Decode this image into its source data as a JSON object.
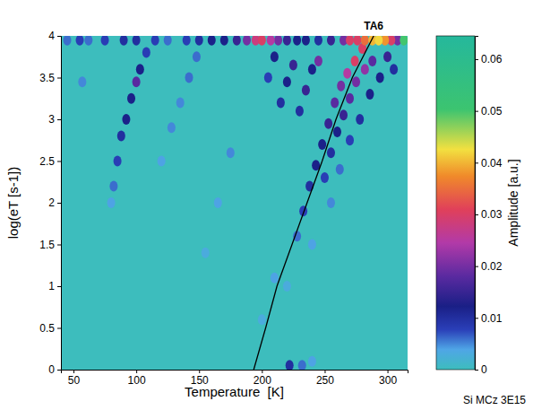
{
  "chart_data": {
    "type": "heatmap",
    "xlabel": "Temperature  [K]",
    "ylabel": "log(eT [s-1])",
    "caption": "Si MCz 3E15",
    "xlim": [
      40,
      316
    ],
    "xticks": [
      50,
      100,
      150,
      200,
      250,
      300
    ],
    "ylim": [
      0,
      4
    ],
    "yticks": [
      0,
      0.5,
      1,
      1.5,
      2,
      2.5,
      3,
      3.5,
      4
    ],
    "cells": {
      "x": [
        45,
        55,
        62,
        75,
        90,
        100,
        115,
        125,
        140,
        150,
        160,
        170,
        180,
        188,
        195,
        200,
        207,
        213,
        220,
        228,
        235,
        245,
        255,
        265,
        270,
        276,
        282,
        288,
        293,
        298,
        303,
        308,
        313,
        80,
        82,
        85,
        88,
        92,
        96,
        100,
        103,
        108,
        57,
        120,
        128,
        135,
        142,
        148,
        155,
        165,
        175,
        215,
        220,
        225,
        230,
        235,
        240,
        205,
        210,
        245,
        228,
        233,
        238,
        243,
        248,
        253,
        258,
        263,
        268,
        274,
        280,
        250,
        255,
        260,
        265,
        270,
        275,
        282,
        288,
        262,
        270,
        278,
        286,
        294,
        300,
        305,
        200,
        210,
        220,
        240,
        255,
        222,
        232,
        240
      ],
      "y": [
        3.95,
        3.95,
        3.95,
        3.95,
        3.95,
        3.95,
        3.95,
        3.95,
        3.95,
        3.95,
        3.95,
        3.95,
        3.95,
        3.95,
        3.95,
        3.95,
        3.95,
        3.95,
        3.95,
        3.95,
        3.95,
        3.95,
        3.95,
        3.95,
        3.95,
        3.95,
        3.95,
        3.95,
        3.95,
        3.95,
        3.95,
        3.95,
        3.95,
        2.0,
        2.2,
        2.5,
        2.8,
        3.0,
        3.25,
        3.45,
        3.6,
        3.8,
        3.45,
        2.5,
        2.9,
        3.2,
        3.5,
        3.75,
        1.4,
        2.0,
        2.6,
        3.2,
        3.45,
        3.65,
        3.1,
        3.35,
        3.6,
        3.5,
        3.75,
        3.7,
        1.6,
        1.9,
        2.2,
        2.45,
        2.7,
        2.95,
        3.2,
        3.4,
        3.55,
        3.7,
        3.85,
        2.3,
        2.6,
        2.85,
        3.05,
        3.25,
        3.45,
        3.6,
        3.7,
        2.4,
        2.75,
        3.0,
        3.3,
        3.5,
        3.75,
        3.6,
        0.6,
        1.1,
        1.0,
        1.5,
        2.0,
        0.05,
        0.05,
        0.1
      ],
      "values": [
        0.006,
        0.008,
        0.006,
        0.008,
        0.01,
        0.01,
        0.008,
        0.006,
        0.008,
        0.01,
        0.012,
        0.012,
        0.015,
        0.02,
        0.028,
        0.03,
        0.025,
        0.02,
        0.015,
        0.012,
        0.012,
        0.01,
        0.015,
        0.02,
        0.03,
        0.03,
        0.035,
        0.04,
        0.042,
        0.038,
        0.03,
        0.02,
        0.05,
        0.004,
        0.006,
        0.008,
        0.01,
        0.012,
        0.012,
        0.018,
        0.012,
        0.008,
        0.005,
        0.004,
        0.005,
        0.005,
        0.006,
        0.006,
        0.003,
        0.004,
        0.005,
        0.01,
        0.012,
        0.015,
        0.01,
        0.015,
        0.012,
        0.008,
        0.012,
        0.02,
        0.006,
        0.008,
        0.01,
        0.012,
        0.012,
        0.015,
        0.018,
        0.02,
        0.025,
        0.03,
        0.03,
        0.008,
        0.01,
        0.012,
        0.015,
        0.018,
        0.02,
        0.022,
        0.018,
        0.006,
        0.008,
        0.01,
        0.012,
        0.012,
        0.015,
        0.01,
        0.003,
        0.004,
        0.003,
        0.004,
        0.005,
        0.01,
        0.006,
        0.004
      ]
    },
    "series": [
      {
        "name": "TA6",
        "type": "line",
        "color": "#000000",
        "x": [
          193.5,
          203,
          212,
          224,
          236,
          248,
          259,
          272,
          289
        ],
        "values": [
          0,
          0.5,
          1,
          1.5,
          2,
          2.5,
          3,
          3.5,
          4
        ]
      }
    ],
    "colorbar": {
      "label": "Amplitude [a.u.]",
      "range": [
        0,
        0.0645
      ],
      "ticks": [
        0,
        0.01,
        0.02,
        0.03,
        0.04,
        0.05,
        0.06
      ]
    }
  }
}
